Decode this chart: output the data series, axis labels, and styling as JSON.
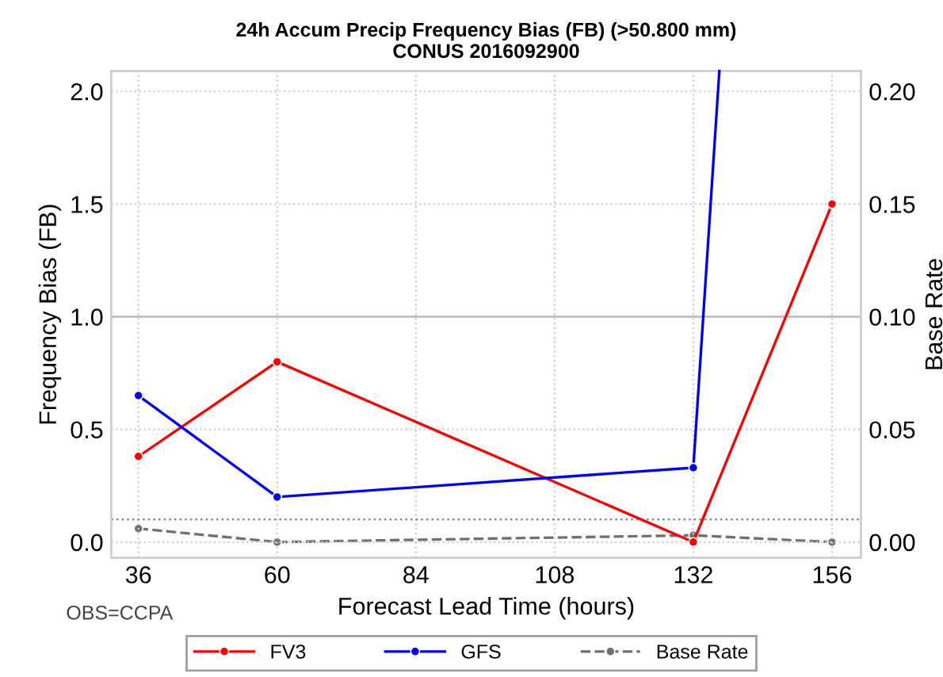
{
  "chart_data": {
    "type": "line",
    "title": "24h Accum Precip Frequency Bias (FB) (>50.800 mm)\nCONUS 2016092900",
    "xlabel": "Forecast Lead Time (hours)",
    "ylabel": "Frequency Bias (FB)",
    "y2label": "Base Rate",
    "x": [
      36,
      60,
      132,
      156
    ],
    "series": [
      {
        "name": "FV3",
        "color": "#ff0000",
        "values": [
          0.38,
          0.8,
          0.0,
          1.5
        ],
        "line_style": "solid"
      },
      {
        "name": "GFS",
        "color": "#0000ff",
        "x": [
          36,
          60,
          132,
          136.5
        ],
        "values": [
          0.65,
          0.2,
          0.33,
          2.09
        ],
        "line_style": "solid",
        "marker": [
          "circle",
          "circle",
          "circle",
          "none"
        ]
      },
      {
        "name": "Base Rate",
        "color": "#707070",
        "values": [
          0.006,
          0.0,
          0.003,
          0.0
        ],
        "axis": "y2",
        "line_style": "dashed"
      }
    ],
    "xlim": [
      31.3,
      161
    ],
    "xticks": [
      36,
      60,
      84,
      108,
      132,
      156
    ],
    "ylim": [
      -0.07,
      2.09
    ],
    "yticks": [
      {
        "value": 0,
        "label": "0.0"
      },
      0.5,
      {
        "value": 1,
        "label": "1.0"
      },
      1.5,
      {
        "value": 2,
        "label": "2.0"
      }
    ],
    "y2lim": [
      -0.007,
      0.209
    ],
    "y2ticks": [
      {
        "value": 0,
        "label": "0.00"
      },
      0.05,
      {
        "value": 0.1,
        "label": "0.10"
      },
      0.15,
      {
        "value": 0.2,
        "label": "0.20"
      }
    ],
    "ref_lines": [
      {
        "axis": "y",
        "value": 1.0,
        "color": "#bbbbbb",
        "line_style": "solid"
      },
      {
        "axis": "y",
        "value": 0.1,
        "color": "#888888",
        "line_style": "dotted"
      }
    ],
    "annotations": [
      "OBS=CCPA"
    ],
    "grid": true,
    "legend": "bottom",
    "marker": "circle"
  }
}
